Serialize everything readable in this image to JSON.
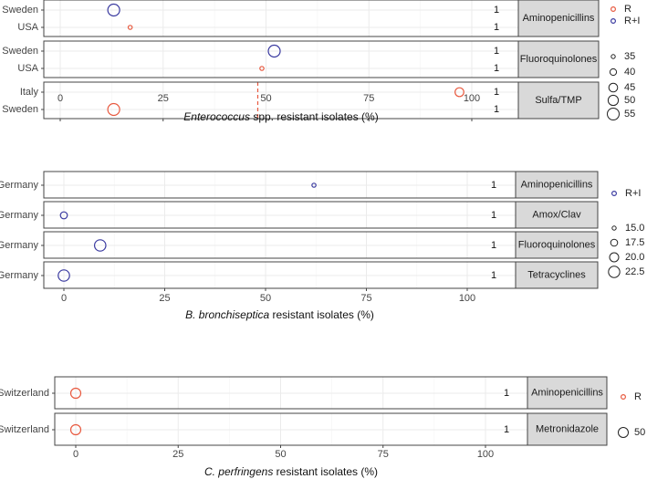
{
  "legend_symbols": {
    "R": "R",
    "RI": "R+I"
  },
  "colors": {
    "R": "#e8593f",
    "RI": "#3a3aa0",
    "strip": "#d9d9d9",
    "grid": "#ebebeb",
    "axis": "#555555",
    "dashed": "#e8593f"
  },
  "chart_data": [
    {
      "type": "scatter",
      "title": "",
      "xlabel_italic": "Enterococcus",
      "xlabel_rest": " spp. resistant isolates (%)",
      "xlim": [
        -4,
        110
      ],
      "xticks": [
        0,
        25,
        50,
        75,
        100
      ],
      "grid": true,
      "dashed_line_x": 48,
      "panels": [
        {
          "facet": "Aminopenicillins",
          "rows": [
            {
              "country": "Sweden",
              "count": "1",
              "points": [
                {
                  "x": 13,
                  "series": "R+I",
                  "size": 55
                }
              ]
            },
            {
              "country": "USA",
              "count": "1",
              "points": [
                {
                  "x": 17,
                  "series": "R",
                  "size": 35
                }
              ]
            }
          ]
        },
        {
          "facet": "Fluoroquinolones",
          "rows": [
            {
              "country": "Sweden",
              "count": "1",
              "points": [
                {
                  "x": 52,
                  "series": "R+I",
                  "size": 55
                }
              ]
            },
            {
              "country": "USA",
              "count": "1",
              "points": [
                {
                  "x": 49,
                  "series": "R",
                  "size": 35
                }
              ]
            }
          ]
        },
        {
          "facet": "Sulfa/TMP",
          "rows": [
            {
              "country": "Italy",
              "count": "1",
              "points": [
                {
                  "x": 97,
                  "series": "R",
                  "size": 45
                }
              ]
            },
            {
              "country": "Sweden",
              "count": "1",
              "points": [
                {
                  "x": 13,
                  "series": "R",
                  "size": 55
                }
              ]
            }
          ]
        }
      ],
      "legend": {
        "series": [
          "R",
          "R+I"
        ],
        "sizes": [
          "35",
          "40",
          "45",
          "50",
          "55"
        ]
      }
    },
    {
      "type": "scatter",
      "title": "",
      "xlabel_italic": "B. bronchiseptica",
      "xlabel_rest": " resistant isolates (%)",
      "xlim": [
        -4,
        110
      ],
      "xticks": [
        0,
        25,
        50,
        75,
        100
      ],
      "grid": true,
      "panels": [
        {
          "facet": "Aminopenicillins",
          "rows": [
            {
              "country": "Germany",
              "count": "1",
              "points": [
                {
                  "x": 62,
                  "series": "R+I",
                  "size": 15
                }
              ]
            }
          ]
        },
        {
          "facet": "Amox/Clav",
          "rows": [
            {
              "country": "Germany",
              "count": "1",
              "points": [
                {
                  "x": 0,
                  "series": "R+I",
                  "size": 17.5
                }
              ]
            }
          ]
        },
        {
          "facet": "Fluoroquinolones",
          "rows": [
            {
              "country": "Germany",
              "count": "1",
              "points": [
                {
                  "x": 9,
                  "series": "R+I",
                  "size": 22.5
                }
              ]
            }
          ]
        },
        {
          "facet": "Tetracyclines",
          "rows": [
            {
              "country": "Germany",
              "count": "1",
              "points": [
                {
                  "x": 0,
                  "series": "R+I",
                  "size": 22.5
                }
              ]
            }
          ]
        }
      ],
      "legend": {
        "series": [
          "R+I"
        ],
        "sizes": [
          "15.0",
          "17.5",
          "20.0",
          "22.5"
        ]
      }
    },
    {
      "type": "scatter",
      "title": "",
      "xlabel_italic": "C. perfringens",
      "xlabel_rest": " resistant isolates (%)",
      "xlim": [
        -5,
        110
      ],
      "xticks": [
        0,
        25,
        50,
        75,
        100
      ],
      "grid": true,
      "panels": [
        {
          "facet": "Aminopenicillins",
          "rows": [
            {
              "country": "Switzerland",
              "count": "1",
              "points": [
                {
                  "x": 0,
                  "series": "R",
                  "size": 50
                }
              ]
            }
          ]
        },
        {
          "facet": "Metronidazole",
          "rows": [
            {
              "country": "Switzerland",
              "count": "1",
              "points": [
                {
                  "x": 0,
                  "series": "R",
                  "size": 50
                }
              ]
            }
          ]
        }
      ],
      "legend": {
        "series": [
          "R"
        ],
        "sizes": [
          "50"
        ]
      }
    }
  ]
}
